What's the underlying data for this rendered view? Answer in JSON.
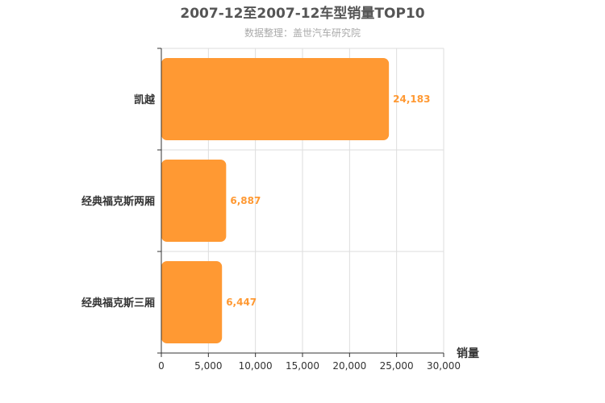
{
  "chart_data": {
    "type": "bar",
    "orientation": "horizontal",
    "title": "2007-12至2007-12车型销量TOP10",
    "subtitle": "数据整理：盖世汽车研究院",
    "categories": [
      "凯越",
      "经典福克斯两厢",
      "经典福克斯三厢"
    ],
    "values": [
      24183,
      6887,
      6447
    ],
    "value_labels": [
      "24,183",
      "6,887",
      "6,447"
    ],
    "xlabel": "销量",
    "xlim": [
      0,
      30000
    ],
    "xticks": [
      0,
      5000,
      10000,
      15000,
      20000,
      25000,
      30000
    ],
    "xtick_labels": [
      "0",
      "5,000",
      "10,000",
      "15,000",
      "20,000",
      "25,000",
      "30,000"
    ],
    "grid": true,
    "bar_color": "#ff9933"
  }
}
